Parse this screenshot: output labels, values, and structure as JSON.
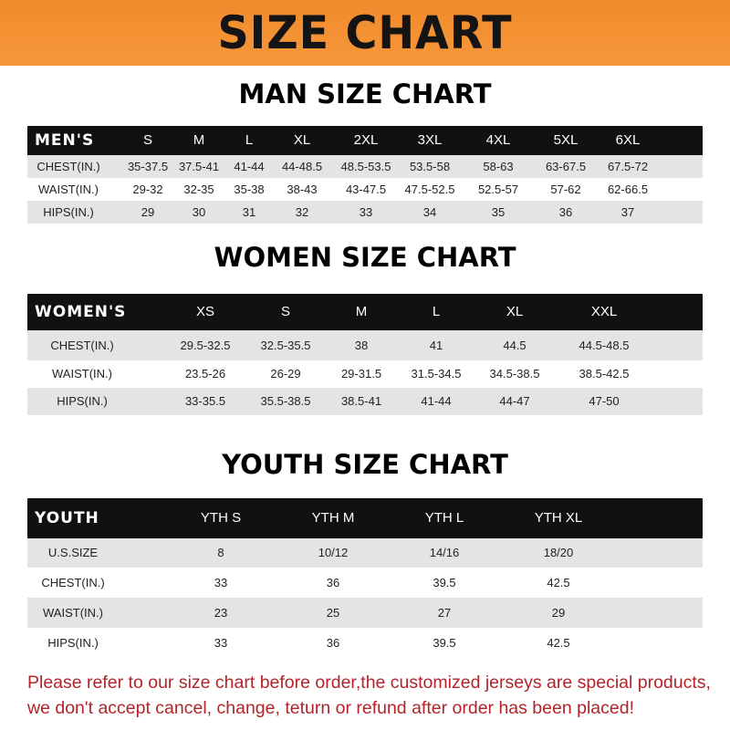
{
  "banner": {
    "title": "SIZE CHART",
    "color": "#f08a2c"
  },
  "men": {
    "title": "MAN SIZE CHART",
    "header": [
      "MEN'S",
      "S",
      "M",
      "L",
      "XL",
      "2XL",
      "3XL",
      "4XL",
      "5XL",
      "6XL"
    ],
    "rows": [
      [
        "CHEST(IN.)",
        "35-37.5",
        "37.5-41",
        "41-44",
        "44-48.5",
        "48.5-53.5",
        "53.5-58",
        "58-63",
        "63-67.5",
        "67.5-72"
      ],
      [
        "WAIST(IN.)",
        "29-32",
        "32-35",
        "35-38",
        "38-43",
        "43-47.5",
        "47.5-52.5",
        "52.5-57",
        "57-62",
        "62-66.5"
      ],
      [
        "HIPS(IN.)",
        "29",
        "30",
        "31",
        "32",
        "33",
        "34",
        "35",
        "36",
        "37"
      ]
    ]
  },
  "women": {
    "title": "WOMEN SIZE CHART",
    "header": [
      "WOMEN'S",
      "XS",
      "S",
      "M",
      "L",
      "XL",
      "XXL"
    ],
    "rows": [
      [
        "CHEST(IN.)",
        "29.5-32.5",
        "32.5-35.5",
        "38",
        "41",
        "44.5",
        "44.5-48.5"
      ],
      [
        "WAIST(IN.)",
        "23.5-26",
        "26-29",
        "29-31.5",
        "31.5-34.5",
        "34.5-38.5",
        "38.5-42.5"
      ],
      [
        "HIPS(IN.)",
        "33-35.5",
        "35.5-38.5",
        "38.5-41",
        "41-44",
        "44-47",
        "47-50"
      ]
    ]
  },
  "youth": {
    "title": "YOUTH SIZE CHART",
    "header": [
      "YOUTH",
      "YTH S",
      "YTH M",
      "YTH L",
      "YTH XL"
    ],
    "rows": [
      [
        "U.S.SIZE",
        "8",
        "10/12",
        "14/16",
        "18/20"
      ],
      [
        "CHEST(IN.)",
        "33",
        "36",
        "39.5",
        "42.5"
      ],
      [
        "WAIST(IN.)",
        "23",
        "25",
        "27",
        "29"
      ],
      [
        "HIPS(IN.)",
        "33",
        "36",
        "39.5",
        "42.5"
      ]
    ]
  },
  "note": {
    "line1": "Please refer to our size chart before order,the customized jerseys are special products,",
    "line2": "we don't accept cancel, change, teturn or refund after order has been placed!",
    "color": "#b3242a"
  }
}
